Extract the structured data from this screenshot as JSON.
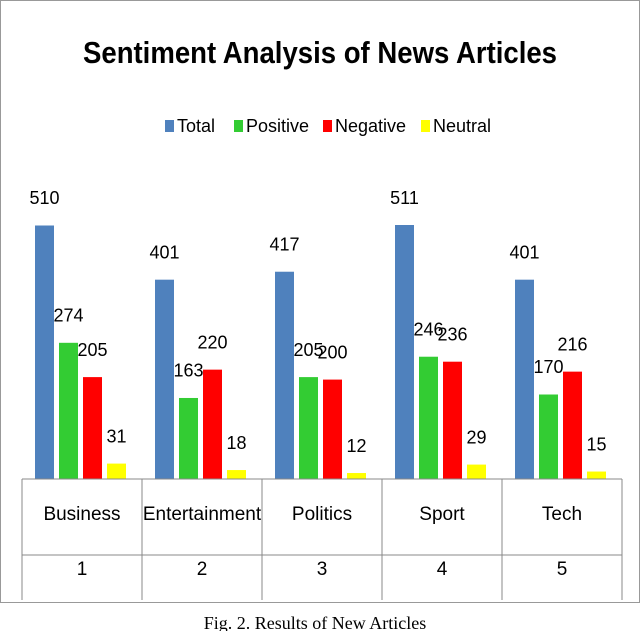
{
  "chart_data": {
    "type": "bar",
    "title": "Sentiment Analysis of News Articles",
    "categories": [
      "Business",
      "Entertainment",
      "Politics",
      "Sport",
      "Tech"
    ],
    "category_numbers": [
      1,
      2,
      3,
      4,
      5
    ],
    "series": [
      {
        "name": "Total",
        "color": "#4f81bd",
        "values": [
          510,
          401,
          417,
          511,
          401
        ]
      },
      {
        "name": "Positive",
        "color": "#33cc33",
        "values": [
          274,
          163,
          205,
          246,
          170
        ]
      },
      {
        "name": "Negative",
        "color": "#ff0000",
        "values": [
          205,
          220,
          200,
          236,
          216
        ]
      },
      {
        "name": "Neutral",
        "color": "#ffff00",
        "values": [
          31,
          18,
          12,
          29,
          15
        ]
      }
    ],
    "legend": "top",
    "caption": "Fig. 2. Results of New Articles"
  }
}
